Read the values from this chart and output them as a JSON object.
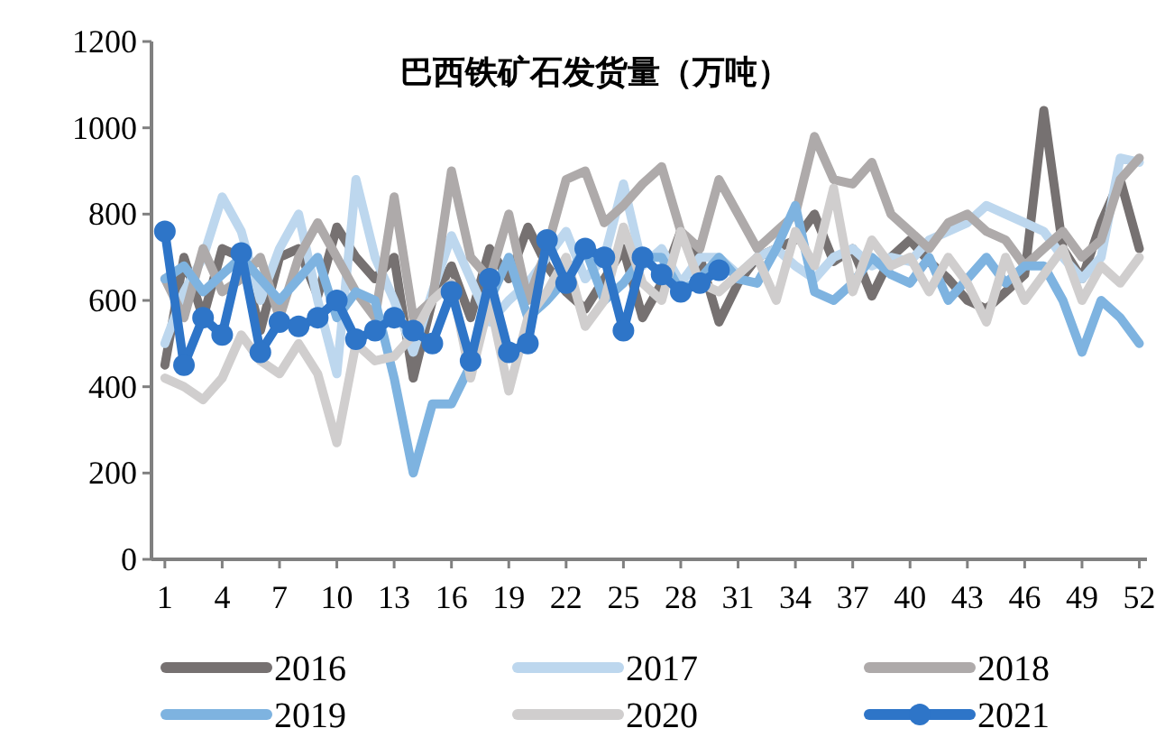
{
  "chart_data": {
    "type": "line",
    "title": "巴西铁矿石发货量（万吨）",
    "x": [
      1,
      2,
      3,
      4,
      5,
      6,
      7,
      8,
      9,
      10,
      11,
      12,
      13,
      14,
      15,
      16,
      17,
      18,
      19,
      20,
      21,
      22,
      23,
      24,
      25,
      26,
      27,
      28,
      29,
      30,
      31,
      32,
      33,
      34,
      35,
      36,
      37,
      38,
      39,
      40,
      41,
      42,
      43,
      44,
      45,
      46,
      47,
      48,
      49,
      50,
      51,
      52
    ],
    "xlim": [
      0.3,
      52.4
    ],
    "xticks": [
      1,
      4,
      7,
      10,
      13,
      16,
      19,
      22,
      25,
      28,
      31,
      34,
      37,
      40,
      43,
      46,
      49,
      52
    ],
    "ylim": [
      0,
      1200
    ],
    "yticks": [
      0,
      200,
      400,
      600,
      800,
      1000,
      1200
    ],
    "grid": false,
    "legend": "bottom",
    "marker": "none",
    "line_style": "solid",
    "series": [
      {
        "name": "2016",
        "color": "#767171",
        "values": [
          450,
          700,
          560,
          720,
          700,
          530,
          700,
          720,
          610,
          770,
          700,
          650,
          700,
          420,
          600,
          680,
          560,
          720,
          650,
          770,
          680,
          620,
          580,
          650,
          720,
          560,
          640,
          760,
          700,
          550,
          640,
          700,
          720,
          740,
          800,
          690,
          720,
          610,
          700,
          740,
          690,
          650,
          600,
          580,
          620,
          660,
          1040,
          720,
          650,
          780,
          880,
          720
        ]
      },
      {
        "name": "2017",
        "color": "#bdd7ee",
        "values": [
          500,
          620,
          700,
          840,
          760,
          600,
          720,
          800,
          600,
          430,
          880,
          700,
          600,
          480,
          620,
          750,
          650,
          550,
          600,
          640,
          700,
          760,
          650,
          700,
          870,
          680,
          720,
          640,
          700,
          700,
          660,
          700,
          720,
          680,
          650,
          700,
          720,
          680,
          700,
          690,
          740,
          760,
          780,
          820,
          800,
          780,
          760,
          700,
          650,
          700,
          930,
          920
        ]
      },
      {
        "name": "2018",
        "color": "#aeaaaa",
        "values": [
          650,
          560,
          720,
          620,
          650,
          700,
          560,
          700,
          780,
          700,
          620,
          560,
          840,
          560,
          600,
          900,
          700,
          650,
          800,
          600,
          720,
          880,
          900,
          780,
          820,
          870,
          910,
          760,
          720,
          880,
          800,
          720,
          760,
          800,
          980,
          880,
          870,
          920,
          800,
          760,
          720,
          780,
          800,
          760,
          740,
          680,
          720,
          760,
          700,
          740,
          880,
          930
        ]
      },
      {
        "name": "2019",
        "color": "#7eb3e0",
        "values": [
          650,
          680,
          620,
          660,
          700,
          650,
          600,
          650,
          700,
          560,
          620,
          600,
          420,
          200,
          360,
          360,
          450,
          600,
          700,
          560,
          600,
          650,
          720,
          600,
          640,
          700,
          700,
          620,
          650,
          700,
          650,
          640,
          720,
          820,
          620,
          600,
          640,
          700,
          660,
          640,
          700,
          600,
          650,
          700,
          640,
          680,
          680,
          600,
          480,
          600,
          560,
          500
        ]
      },
      {
        "name": "2020",
        "color": "#d0cece",
        "values": [
          420,
          400,
          370,
          420,
          520,
          460,
          430,
          500,
          430,
          270,
          500,
          460,
          470,
          520,
          600,
          640,
          420,
          600,
          390,
          560,
          620,
          700,
          540,
          600,
          770,
          640,
          600,
          760,
          640,
          620,
          660,
          700,
          600,
          760,
          680,
          860,
          620,
          740,
          680,
          700,
          620,
          700,
          640,
          550,
          700,
          600,
          660,
          720,
          600,
          680,
          640,
          700
        ]
      },
      {
        "name": "2021",
        "color": "#2e75c8",
        "marker": "circle",
        "values": [
          760,
          450,
          560,
          520,
          710,
          480,
          550,
          540,
          560,
          600,
          510,
          530,
          560,
          530,
          500,
          620,
          460,
          650,
          480,
          500,
          740,
          640,
          720,
          700,
          530,
          700,
          660,
          620,
          640,
          670,
          null,
          null,
          null,
          null,
          null,
          null,
          null,
          null,
          null,
          null,
          null,
          null,
          null,
          null,
          null,
          null,
          null,
          null,
          null,
          null,
          null,
          null
        ]
      }
    ]
  }
}
